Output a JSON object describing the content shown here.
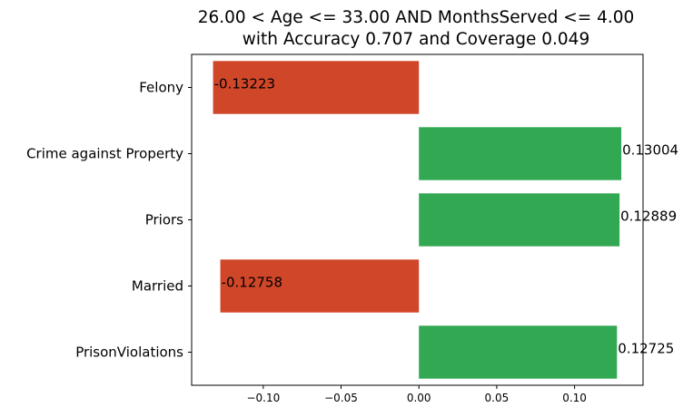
{
  "chart_data": {
    "type": "bar",
    "orientation": "horizontal",
    "title_lines": [
      "26.00 < Age <= 33.00 AND MonthsServed <= 4.00",
      "with Accuracy 0.707 and Coverage 0.049"
    ],
    "categories": [
      "Felony",
      "Crime against Property",
      "Priors",
      "Married",
      "PrisonViolations"
    ],
    "values": [
      -0.13223,
      0.13004,
      0.12889,
      -0.12758,
      0.12725
    ],
    "value_labels": [
      "-0.13223",
      "0.13004",
      "0.12889",
      "-0.12758",
      "0.12725"
    ],
    "xlim": [
      -0.146,
      0.144
    ],
    "xticks": [
      -0.1,
      -0.05,
      0.0,
      0.05,
      0.1
    ],
    "xtick_labels": [
      "−0.10",
      "−0.05",
      "0.00",
      "0.05",
      "0.10"
    ],
    "xlabel": "",
    "ylabel": "",
    "grid": false,
    "legend": "none",
    "colors": {
      "positive": "#33a852",
      "negative": "#d04628"
    }
  }
}
